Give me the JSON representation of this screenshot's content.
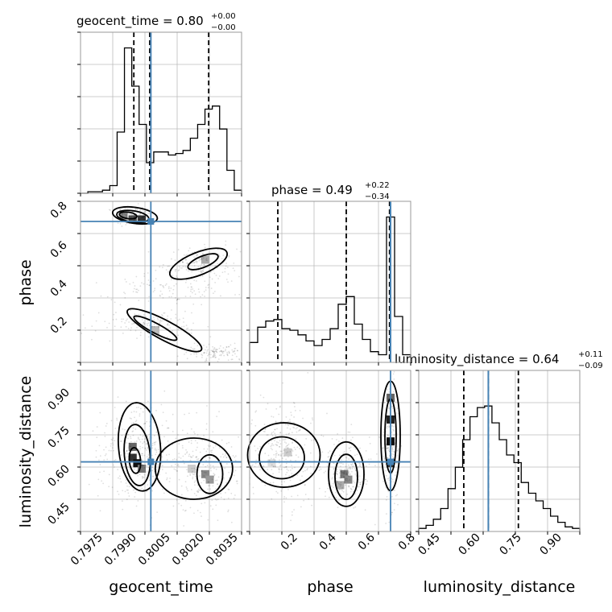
{
  "colors": {
    "truth": "#4682b4",
    "hist": "#000000",
    "grid": "#bbbbbb",
    "frame": "#999999"
  },
  "chart_data": {
    "type": "corner",
    "parameters": [
      {
        "name": "geocent_time",
        "title_value": "0.80",
        "err_plus": "+0.00",
        "err_minus": "−0.00",
        "ticks": [
          "0.7975",
          "0.7990",
          "0.8005",
          "0.8020",
          "0.8035"
        ]
      },
      {
        "name": "phase",
        "title_value": "0.49",
        "err_plus": "+0.22",
        "err_minus": "−0.34",
        "ticks": [
          "0.2",
          "0.4",
          "0.6",
          "0.8"
        ]
      },
      {
        "name": "luminosity_distance",
        "title_value": "0.64",
        "err_plus": "+0.11",
        "err_minus": "−0.09",
        "ticks": [
          "0.45",
          "0.60",
          "0.75",
          "0.90"
        ]
      }
    ],
    "ranges": [
      [
        0.7965,
        0.8036
      ],
      [
        0.01,
        0.81
      ],
      [
        0.39,
        0.98
      ]
    ],
    "truths": [
      0.7996,
      0.71,
      0.645
    ],
    "quantiles": [
      [
        0.79885,
        0.79955,
        0.80215
      ],
      [
        0.15,
        0.49,
        0.705
      ],
      [
        0.555,
        0.645,
        0.755
      ]
    ],
    "histograms": [
      {
        "heights": [
          0,
          0.01,
          0.01,
          0.02,
          0.05,
          0.4,
          0.95,
          0.7,
          0.45,
          0.2,
          0.27,
          0.27,
          0.25,
          0.26,
          0.28,
          0.36,
          0.45,
          0.55,
          0.57,
          0.42,
          0.15,
          0.02
        ]
      },
      {
        "heights": [
          0.13,
          0.23,
          0.27,
          0.28,
          0.22,
          0.21,
          0.18,
          0.14,
          0.11,
          0.15,
          0.22,
          0.38,
          0.43,
          0.25,
          0.15,
          0.07,
          0.05,
          0.95,
          0.3,
          0.05
        ]
      },
      {
        "heights": [
          0.02,
          0.04,
          0.08,
          0.15,
          0.28,
          0.42,
          0.6,
          0.75,
          0.81,
          0.82,
          0.71,
          0.6,
          0.5,
          0.45,
          0.32,
          0.25,
          0.2,
          0.15,
          0.1,
          0.06,
          0.03,
          0.02
        ]
      }
    ],
    "grid": true
  }
}
